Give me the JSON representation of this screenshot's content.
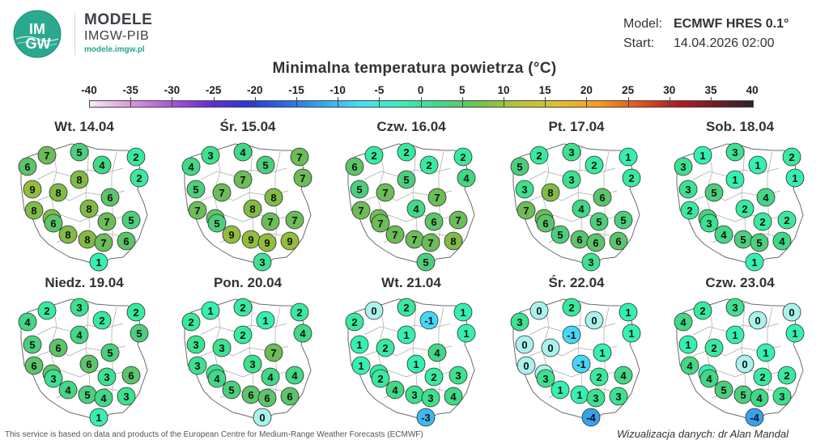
{
  "brand": {
    "logo_text_top": "IM",
    "logo_text_bottom": "GW",
    "title": "MODELE",
    "subtitle": "IMGW-PIB",
    "url": "modele.imgw.pl"
  },
  "model_info": {
    "model_label": "Model:",
    "model_value": "ECMWF HRES 0.1°",
    "start_label": "Start:",
    "start_value": "14.04.2026 02:00"
  },
  "title": "Minimalna temperatura powietrza (°C)",
  "scale": {
    "labels": [
      "-40",
      "-35",
      "-30",
      "-25",
      "-20",
      "-15",
      "-10",
      "-5",
      "0",
      "5",
      "10",
      "15",
      "20",
      "25",
      "30",
      "35",
      "40"
    ],
    "colors": [
      "#f8ecf6",
      "#dd99db",
      "#b05ad7",
      "#6b2fd9",
      "#2f33d8",
      "#2c69e2",
      "#35a9ee",
      "#40e4f4",
      "#36f0b6",
      "#3ed78b",
      "#71c44f",
      "#b6c43a",
      "#e0c02f",
      "#f49f1f",
      "#e05a1b",
      "#b61f22",
      "#7a1b22",
      "#2a2528"
    ]
  },
  "days": [
    {
      "date": "Wt. 14.04",
      "values": {
        "szczecin": 6,
        "koszalin": 7,
        "gdansk": 5,
        "olsztyn": 4,
        "suwalki": 2,
        "bialystok": 2,
        "gorzow": 9,
        "bydgoszcz": 8,
        "torun": 8,
        "warszawa": 6,
        "poznan": 8,
        "zielona": 8,
        "lodz": 8,
        "lublin": 5,
        "kielce": 7,
        "wroclaw": 8,
        "opole": 8,
        "katowice": 7,
        "krakow": 6,
        "rzeszow": 6,
        "zakopane": 1
      }
    },
    {
      "date": "Śr. 15.04",
      "values": {
        "szczecin": 4,
        "koszalin": 3,
        "gdansk": 4,
        "olsztyn": 5,
        "suwalki": 7,
        "bialystok": 7,
        "gorzow": 5,
        "bydgoszcz": 7,
        "torun": 7,
        "warszawa": 8,
        "poznan": 7,
        "zielona": 6,
        "lodz": 8,
        "lublin": 7,
        "kielce": 7,
        "wroclaw": 9,
        "opole": 9,
        "katowice": 9,
        "krakow": 9,
        "rzeszow": 5,
        "zakopane": 3
      }
    },
    {
      "date": "Czw. 16.04",
      "values": {
        "szczecin": 6,
        "koszalin": 2,
        "gdansk": 2,
        "olsztyn": 2,
        "suwalki": 2,
        "bialystok": 4,
        "gorzow": 5,
        "bydgoszcz": 7,
        "torun": 5,
        "warszawa": 7,
        "poznan": 7,
        "zielona": 7,
        "lodz": 4,
        "lublin": 7,
        "kielce": 6,
        "wroclaw": 7,
        "opole": 7,
        "katowice": 7,
        "krakow": 8,
        "rzeszow": 7,
        "zakopane": 5
      }
    },
    {
      "date": "Pt. 17.04",
      "values": {
        "szczecin": 5,
        "koszalin": 2,
        "gdansk": 3,
        "olsztyn": 2,
        "suwalki": 1,
        "bialystok": 2,
        "gorzow": 3,
        "bydgoszcz": 8,
        "torun": 3,
        "warszawa": 6,
        "poznan": 7,
        "zielona": 7,
        "lodz": 4,
        "lublin": 5,
        "kielce": 5,
        "wroclaw": 5,
        "opole": 6,
        "katowice": 6,
        "krakow": 6,
        "rzeszow": 6,
        "zakopane": 3
      }
    },
    {
      "date": "Sob. 18.04",
      "values": {
        "szczecin": 3,
        "koszalin": 1,
        "gdansk": 3,
        "olsztyn": 1,
        "suwalki": 2,
        "bialystok": 1,
        "gorzow": 3,
        "bydgoszcz": 5,
        "torun": 1,
        "warszawa": 4,
        "poznan": 2,
        "zielona": 5,
        "lodz": 2,
        "lublin": 2,
        "kielce": 2,
        "wroclaw": 4,
        "opole": 5,
        "katowice": 5,
        "krakow": 4,
        "rzeszow": 3,
        "zakopane": 1
      }
    },
    {
      "date": "Niedz. 19.04",
      "values": {
        "szczecin": 4,
        "koszalin": 2,
        "gdansk": 3,
        "olsztyn": 2,
        "suwalki": 2,
        "bialystok": 5,
        "gorzow": 5,
        "bydgoszcz": 6,
        "torun": 4,
        "warszawa": 5,
        "poznan": 6,
        "zielona": 6,
        "lodz": 6,
        "lublin": 6,
        "kielce": 3,
        "wroclaw": 4,
        "opole": 5,
        "katowice": 4,
        "krakow": 3,
        "rzeszow": 3,
        "zakopane": 1
      }
    },
    {
      "date": "Pon. 20.04",
      "values": {
        "szczecin": 2,
        "koszalin": 1,
        "gdansk": 2,
        "olsztyn": 1,
        "suwalki": 2,
        "bialystok": 4,
        "gorzow": 3,
        "bydgoszcz": 3,
        "torun": 2,
        "warszawa": 7,
        "poznan": 3,
        "zielona": 3,
        "lodz": 3,
        "lublin": 4,
        "kielce": 4,
        "wroclaw": 5,
        "opole": 6,
        "katowice": 6,
        "krakow": 6,
        "rzeszow": 4,
        "zakopane": 0
      }
    },
    {
      "date": "Wt. 21.04",
      "values": {
        "szczecin": 2,
        "koszalin": 0,
        "gdansk": 2,
        "olsztyn": -1,
        "suwalki": 1,
        "bialystok": 1,
        "gorzow": 1,
        "bydgoszcz": 2,
        "torun": 1,
        "warszawa": 4,
        "poznan": 1,
        "zielona": 2,
        "lodz": 1,
        "lublin": 3,
        "kielce": 2,
        "wroclaw": 4,
        "opole": 3,
        "katowice": 3,
        "krakow": 4,
        "rzeszow": 2,
        "zakopane": -3
      }
    },
    {
      "date": "Śr. 22.04",
      "values": {
        "szczecin": 3,
        "koszalin": 0,
        "gdansk": 2,
        "olsztyn": 0,
        "suwalki": 1,
        "bialystok": 1,
        "gorzow": 0,
        "bydgoszcz": 0,
        "torun": -1,
        "warszawa": 1,
        "poznan": 0,
        "zielona": 0,
        "lodz": -1,
        "lublin": 4,
        "kielce": 2,
        "wroclaw": 1,
        "opole": 1,
        "katowice": 3,
        "krakow": 3,
        "rzeszow": 3,
        "zakopane": -4
      }
    },
    {
      "date": "Czw. 23.04",
      "values": {
        "szczecin": 4,
        "koszalin": 2,
        "gdansk": 3,
        "olsztyn": 0,
        "suwalki": 0,
        "bialystok": 1,
        "gorzow": 1,
        "bydgoszcz": 2,
        "torun": 1,
        "warszawa": 1,
        "poznan": 4,
        "zielona": 1,
        "lodz": 0,
        "lublin": 2,
        "kielce": 2,
        "wroclaw": 5,
        "opole": 5,
        "katowice": 4,
        "krakow": 3,
        "rzeszow": 4,
        "zakopane": -4
      }
    }
  ],
  "footer": {
    "left": "This service is based on data and products of the European Centre for Medium-Range Weather Forecasts (ECMWF)",
    "right": "Wizualizacja danych: dr Alan Mandal"
  }
}
